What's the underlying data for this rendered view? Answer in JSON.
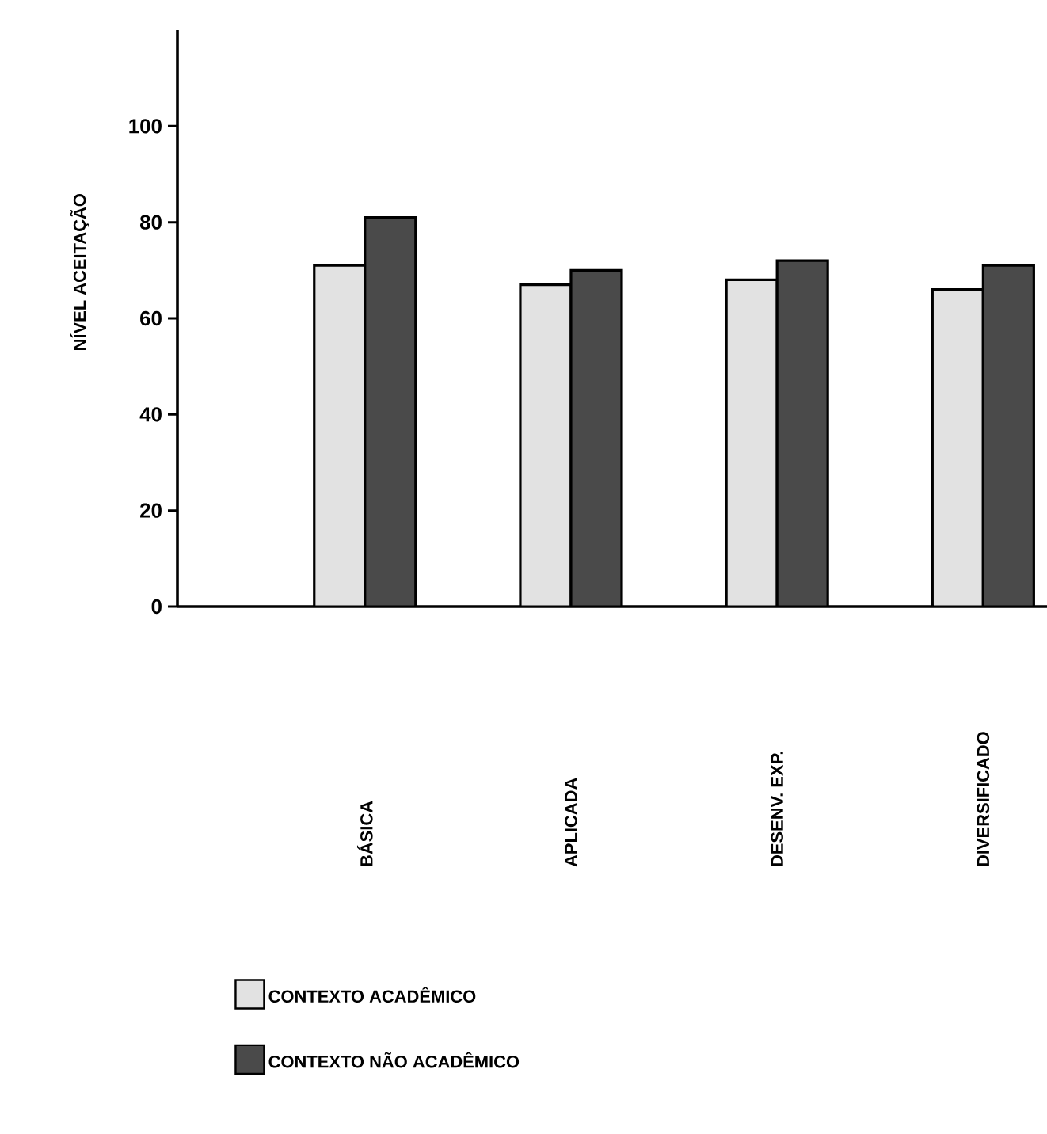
{
  "chart_data": {
    "type": "bar",
    "ylabel": "NÍVEL ACEITAÇÃO",
    "categories": [
      "BÁSICA",
      "APLICADA",
      "DESENV. EXP.",
      "DIVERSIFICADO"
    ],
    "series": [
      {
        "name": "CONTEXTO ACADÊMICO",
        "color": "#e2e2e2",
        "values": [
          71,
          67,
          68,
          66
        ]
      },
      {
        "name": "CONTEXTO NÃO ACADÊMICO",
        "color": "#4a4a4a",
        "values": [
          81,
          70,
          72,
          71
        ]
      }
    ],
    "ylim": [
      0,
      120
    ],
    "yticks": [
      0,
      20,
      40,
      60,
      80,
      100
    ],
    "legend": "bottom"
  }
}
